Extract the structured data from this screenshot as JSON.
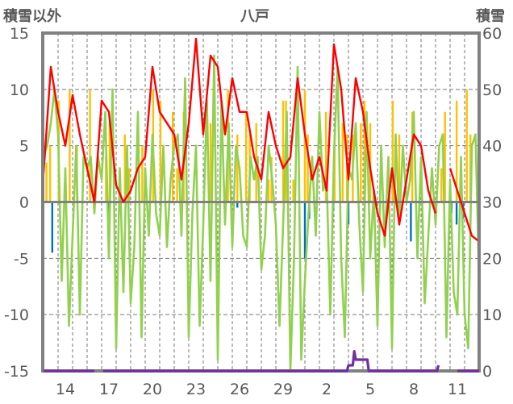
{
  "chart_data": {
    "type": "line",
    "title": "八戸",
    "ylabel_left": "積雪以外",
    "ylabel_right": "積雪",
    "ylim_left": [
      -15,
      15
    ],
    "ylim_right": [
      0,
      60
    ],
    "yticks_left": [
      "15",
      "10",
      "5",
      "0",
      "-5",
      "-10",
      "-15"
    ],
    "yticks_right": [
      "60",
      "50",
      "40",
      "30",
      "20",
      "10",
      "0"
    ],
    "xlim_days": [
      0,
      30
    ],
    "xticks": [
      {
        "t": 1.5,
        "label": "14"
      },
      {
        "t": 4.5,
        "label": "17"
      },
      {
        "t": 7.5,
        "label": "20"
      },
      {
        "t": 10.5,
        "label": "23"
      },
      {
        "t": 13.5,
        "label": "26"
      },
      {
        "t": 16.5,
        "label": "29"
      },
      {
        "t": 19.5,
        "label": "2"
      },
      {
        "t": 22.5,
        "label": "5"
      },
      {
        "t": 25.5,
        "label": "8"
      },
      {
        "t": 28.5,
        "label": "11"
      }
    ],
    "grid": true,
    "colors": {
      "red": "#ff0000",
      "green": "#92d050",
      "orange": "#ffc000",
      "blue": "#0070c0",
      "purple": "#7030a0",
      "frame": "#808080"
    },
    "series": [
      {
        "name": "red",
        "axis": "left",
        "start": 0,
        "step": 0.5,
        "values": [
          2.5,
          12,
          8,
          5,
          9.5,
          6,
          3,
          0,
          9,
          8,
          1.5,
          0,
          1,
          3,
          4,
          12,
          8,
          7,
          6,
          2,
          7,
          14.5,
          6,
          13,
          12,
          6,
          11,
          8,
          8,
          4,
          2,
          8,
          5,
          3,
          4,
          11,
          6,
          2,
          4,
          1,
          14,
          10,
          2,
          11,
          8,
          3,
          -1,
          -3,
          3,
          -2,
          2,
          6,
          5,
          1,
          -1,
          null,
          3,
          1,
          -1,
          -3,
          -3.5
        ]
      },
      {
        "name": "green",
        "axis": "left",
        "start": 0,
        "step": 0.25,
        "values": [
          4,
          5,
          7,
          10,
          6,
          -7,
          3,
          -11,
          -3,
          5,
          -10,
          4,
          3,
          4,
          -1,
          4,
          2,
          8,
          -5,
          10,
          -13,
          3,
          -8,
          5,
          -9,
          -4,
          8,
          -12,
          3,
          -3,
          6,
          -1,
          -3,
          5,
          -4,
          2,
          5,
          6,
          -3,
          11,
          -12,
          -1,
          5,
          -11,
          -2,
          9,
          -7,
          13,
          -14,
          9,
          -2,
          7,
          -4,
          5,
          3,
          -3,
          -4,
          4,
          2,
          4,
          -6,
          -3,
          5,
          2,
          -2,
          -11,
          -2,
          8,
          -15,
          -5,
          12,
          -14,
          -7,
          -1,
          4,
          -3,
          8,
          1,
          2,
          -10,
          4,
          12,
          -5,
          -12,
          3,
          2,
          7,
          -2,
          -8,
          8,
          -5,
          1,
          -11,
          5,
          -4,
          4,
          -13,
          6,
          -2,
          5,
          0,
          2,
          8,
          -5,
          4,
          -9,
          -3,
          3,
          -2,
          5,
          6,
          -12,
          2,
          -8,
          -10,
          4,
          -10,
          -13,
          5,
          6,
          -7
        ]
      },
      {
        "name": "snow-depth",
        "axis": "right",
        "points": [
          [
            0,
            0
          ],
          [
            3.5,
            0
          ],
          [
            3.6,
            null
          ],
          [
            4.1,
            0
          ],
          [
            20.9,
            0
          ],
          [
            21.0,
            1
          ],
          [
            21.3,
            1
          ],
          [
            21.4,
            3.5
          ],
          [
            21.5,
            2
          ],
          [
            22.3,
            2
          ],
          [
            22.4,
            0
          ],
          [
            27.1,
            0
          ],
          [
            27.2,
            1
          ],
          [
            27.3,
            null
          ],
          [
            28.5,
            0
          ],
          [
            30,
            0
          ]
        ]
      }
    ],
    "bars_orange": [
      [
        0.2,
        3.5
      ],
      [
        0.45,
        5
      ],
      [
        1.05,
        9
      ],
      [
        1.8,
        10
      ],
      [
        2.3,
        5
      ],
      [
        3.2,
        10
      ],
      [
        4.3,
        4
      ],
      [
        4.55,
        7
      ],
      [
        5.6,
        6
      ],
      [
        5.9,
        3
      ],
      [
        6.8,
        5
      ],
      [
        7.55,
        10
      ],
      [
        8.05,
        9
      ],
      [
        8.9,
        8
      ],
      [
        9.2,
        3
      ],
      [
        9.65,
        8
      ],
      [
        11.5,
        7
      ],
      [
        12.7,
        10
      ],
      [
        13.35,
        6
      ],
      [
        13.95,
        8
      ],
      [
        14.2,
        6
      ],
      [
        14.65,
        7
      ],
      [
        15.5,
        2
      ],
      [
        15.7,
        4
      ],
      [
        16.5,
        9
      ],
      [
        16.7,
        9
      ],
      [
        17.2,
        2
      ],
      [
        18.0,
        10
      ],
      [
        18.2,
        6
      ],
      [
        19.45,
        8
      ],
      [
        20.05,
        6
      ],
      [
        20.6,
        7
      ],
      [
        20.9,
        6
      ],
      [
        21.3,
        6
      ],
      [
        21.85,
        7
      ],
      [
        22.1,
        9
      ],
      [
        22.5,
        7
      ],
      [
        24.05,
        9
      ],
      [
        24.5,
        6
      ],
      [
        25.4,
        8
      ],
      [
        27.4,
        3
      ],
      [
        27.65,
        8
      ],
      [
        28.45,
        9
      ],
      [
        29.15,
        10
      ],
      [
        29.4,
        6
      ]
    ],
    "bars_blue": [
      [
        0.6,
        -4.5
      ],
      [
        4.5,
        -2.5
      ],
      [
        13.35,
        -0.5
      ],
      [
        18.0,
        -5
      ],
      [
        18.3,
        -1.5
      ],
      [
        19.95,
        -0.8
      ],
      [
        21.0,
        -2
      ],
      [
        25.3,
        -3.5
      ],
      [
        28.1,
        -1
      ],
      [
        28.45,
        -2
      ],
      [
        28.9,
        -1.5
      ]
    ]
  }
}
